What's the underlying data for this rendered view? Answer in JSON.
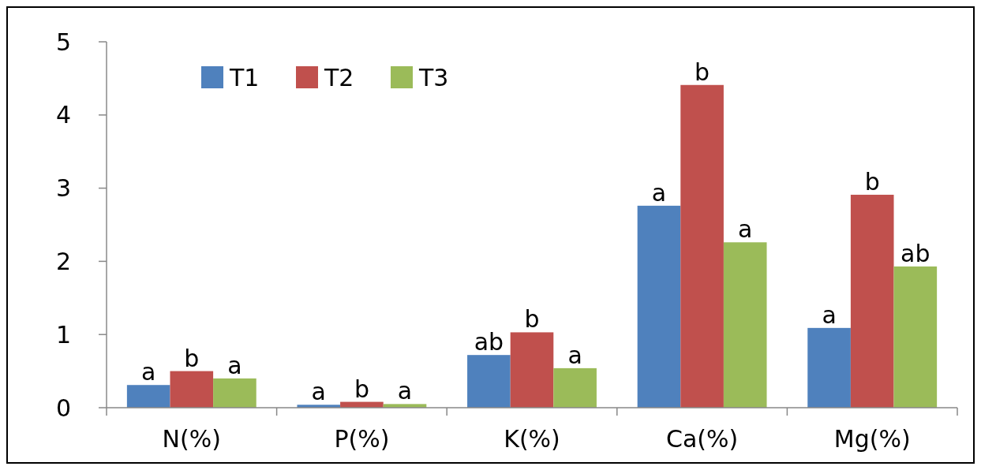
{
  "chart_data": {
    "type": "bar",
    "categories": [
      "N(%)",
      "P(%)",
      "K(%)",
      "Ca(%)",
      "Mg(%)"
    ],
    "series": [
      {
        "name": "T1",
        "color": "#4f81bd",
        "values": [
          0.31,
          0.04,
          0.72,
          2.76,
          1.09
        ],
        "value_labels": [
          "a",
          "a",
          "ab",
          "a",
          "a"
        ]
      },
      {
        "name": "T2",
        "color": "#c0504d",
        "values": [
          0.5,
          0.08,
          1.03,
          4.41,
          2.91
        ],
        "value_labels": [
          "b",
          "b",
          "b",
          "b",
          "b"
        ]
      },
      {
        "name": "T3",
        "color": "#9bbb59",
        "values": [
          0.4,
          0.05,
          0.54,
          2.26,
          1.93
        ],
        "value_labels": [
          "a",
          "a",
          "a",
          "a",
          "ab"
        ]
      }
    ],
    "ylim": [
      0,
      5
    ],
    "yticks": [
      0,
      1,
      2,
      3,
      4,
      5
    ],
    "grid": false,
    "legend": "top left"
  }
}
